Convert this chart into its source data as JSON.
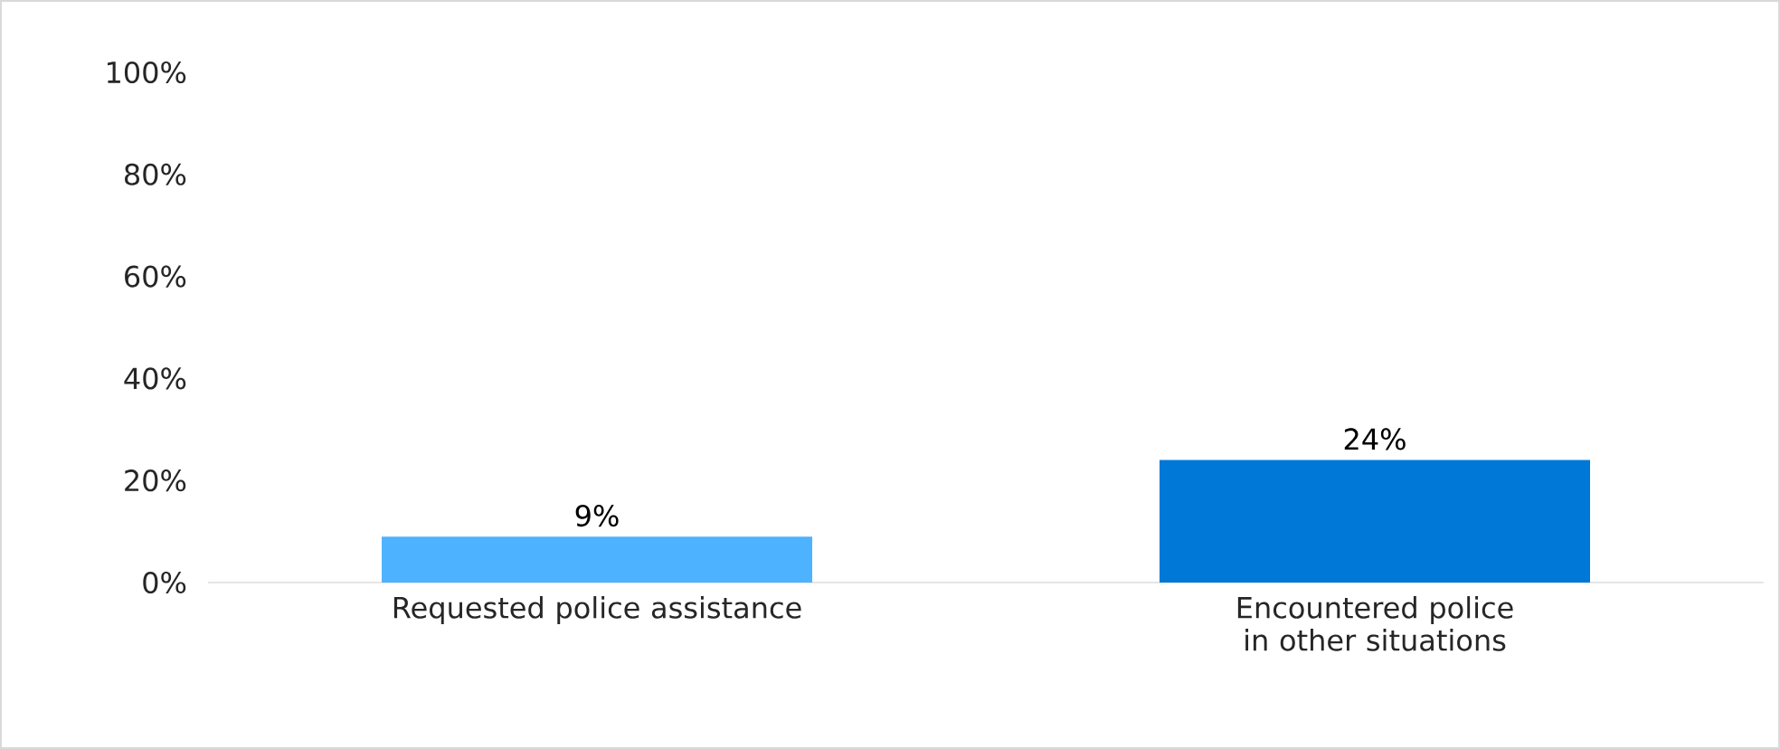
{
  "chart_data": {
    "type": "bar",
    "categories": [
      "Requested police assistance",
      "Encountered police in other situations"
    ],
    "values": [
      9,
      24
    ],
    "colors": [
      "#4db2ff",
      "#0078d7"
    ],
    "value_labels": [
      "9%",
      "24%"
    ],
    "ylim": [
      0,
      100
    ],
    "yticks": [
      {
        "value": 0,
        "label": "0%"
      },
      {
        "value": 20,
        "label": "20%"
      },
      {
        "value": 40,
        "label": "40%"
      },
      {
        "value": 60,
        "label": "60%"
      },
      {
        "value": 80,
        "label": "80%"
      },
      {
        "value": 100,
        "label": "100%"
      }
    ],
    "grid": false
  }
}
